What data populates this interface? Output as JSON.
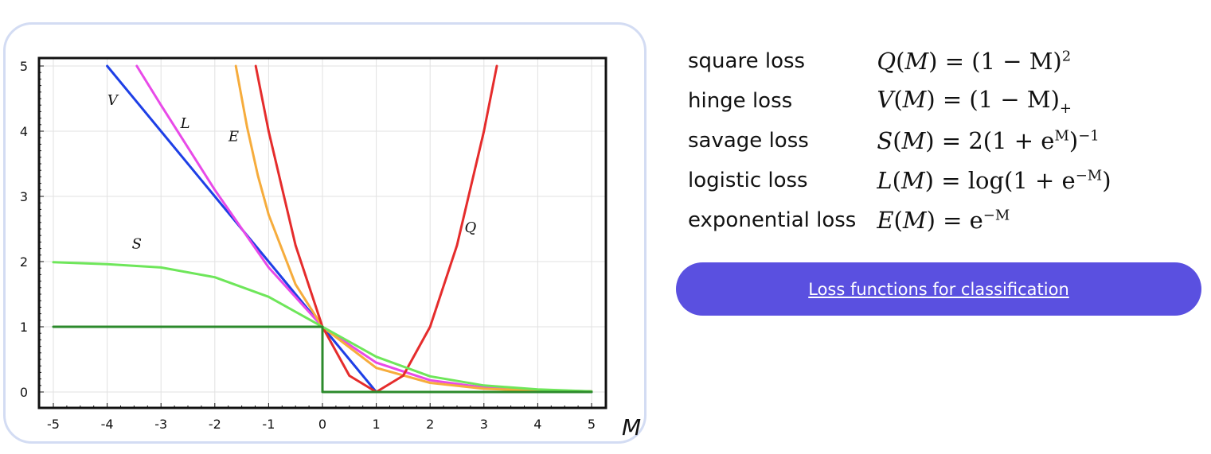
{
  "chart_data": {
    "type": "line",
    "xlabel": "M",
    "ylabel": "",
    "xlim": [
      -5,
      5
    ],
    "ylim": [
      0,
      5
    ],
    "x_ticks": [
      "-5",
      "-4",
      "-3",
      "-2",
      "-1",
      "0",
      "1",
      "2",
      "3",
      "4",
      "5"
    ],
    "y_ticks": [
      "0",
      "1",
      "2",
      "3",
      "4",
      "5"
    ],
    "grid": true,
    "series": [
      {
        "name": "V",
        "color": "#1e3fe6",
        "x": [
          -4,
          -3,
          -2,
          -1,
          0,
          1,
          2,
          3,
          4,
          5
        ],
        "y": [
          5,
          4,
          3,
          2,
          1,
          0,
          0,
          0,
          0,
          0
        ]
      },
      {
        "name": "L",
        "color": "#e84ae8",
        "x": [
          -3.45,
          -3,
          -2,
          -1,
          0,
          1,
          2,
          3,
          4,
          5
        ],
        "y": [
          5,
          4.4,
          3.1,
          1.91,
          1,
          0.45,
          0.18,
          0.07,
          0.03,
          0.01
        ]
      },
      {
        "name": "E",
        "color": "#f6ac3c",
        "x": [
          -1.61,
          -1.4,
          -1.2,
          -1,
          -0.5,
          0,
          1,
          2,
          3,
          4,
          5
        ],
        "y": [
          5,
          4.06,
          3.32,
          2.72,
          1.65,
          1,
          0.37,
          0.14,
          0.05,
          0.02,
          0.01
        ]
      },
      {
        "name": "Q",
        "color": "#e52c2c",
        "x": [
          -1.24,
          -1,
          -0.5,
          0,
          0.5,
          1,
          1.5,
          2,
          2.5,
          3,
          3.24
        ],
        "y": [
          5,
          4,
          2.25,
          1,
          0.25,
          0,
          0.25,
          1,
          2.25,
          4,
          5
        ]
      },
      {
        "name": "S",
        "color": "#6ee65a",
        "x": [
          -5,
          -4,
          -3,
          -2,
          -1,
          0,
          1,
          2,
          3,
          4,
          5
        ],
        "y": [
          1.99,
          1.96,
          1.91,
          1.76,
          1.46,
          1,
          0.54,
          0.24,
          0.1,
          0.04,
          0.01
        ]
      },
      {
        "name": "",
        "color": "#2c8a2c",
        "x": [
          -5,
          0,
          0,
          5
        ],
        "y": [
          1,
          1,
          0,
          0
        ]
      }
    ],
    "curve_labels": [
      {
        "text": "V",
        "x": -3.9,
        "y": 4.4
      },
      {
        "text": "L",
        "x": -2.55,
        "y": 4.05
      },
      {
        "text": "E",
        "x": -1.65,
        "y": 3.85
      },
      {
        "text": "S",
        "x": -3.45,
        "y": 2.2
      },
      {
        "text": "Q",
        "x": 2.75,
        "y": 2.45
      }
    ]
  },
  "legend": {
    "rows": [
      {
        "name": "square loss",
        "formula": {
          "func": "Q",
          "arg": "M",
          "rhs": "(1 − M)",
          "sup": "2",
          "sub": ""
        }
      },
      {
        "name": "hinge loss",
        "formula": {
          "func": "V",
          "arg": "M",
          "rhs": "(1 − M)",
          "sup": "",
          "sub": "+"
        }
      },
      {
        "name": "savage loss",
        "formula": {
          "func": "S",
          "arg": "M",
          "rhs_parts": [
            "2(1 + e",
            "M",
            ")",
            "−1"
          ]
        }
      },
      {
        "name": "logistic loss",
        "formula": {
          "func": "L",
          "arg": "M",
          "rhs_parts": [
            "log(1 + e",
            "−M",
            ")"
          ]
        }
      },
      {
        "name": "exponential loss",
        "formula": {
          "func": "E",
          "arg": "M",
          "rhs_parts": [
            "e",
            "−M"
          ]
        }
      }
    ]
  },
  "link_button": {
    "label": "Loss functions for classification"
  }
}
